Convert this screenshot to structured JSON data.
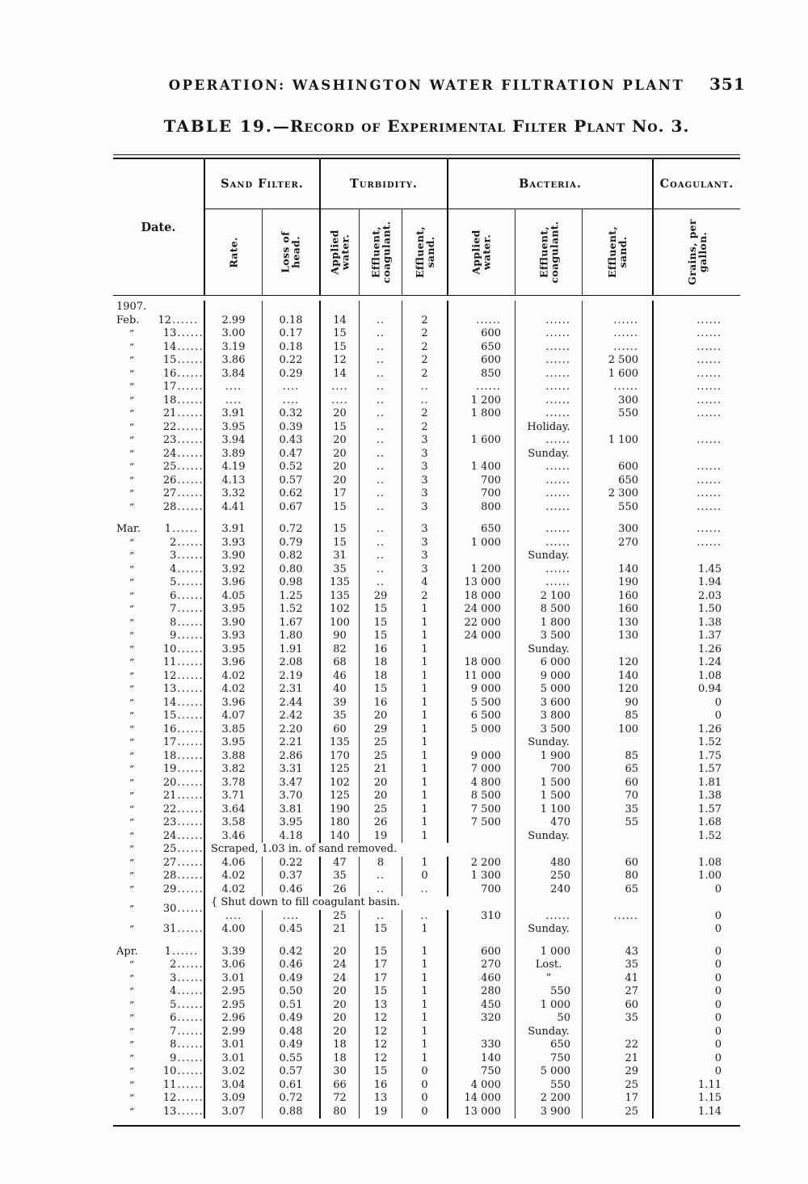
{
  "page": {
    "running_head": "OPERATION: WASHINGTON WATER FILTRATION PLANT",
    "page_number": "351",
    "table_label": "TABLE 19.",
    "table_title": "—Record of Experimental Filter Plant No. 3."
  },
  "table": {
    "date_header": "Date.",
    "leader_dots": "......",
    "ditto": "”",
    "groups": [
      {
        "label": "Sand Filter."
      },
      {
        "label": "Turbidity."
      },
      {
        "label": "Bacteria."
      },
      {
        "label": "Coagulant."
      }
    ],
    "columns": [
      "Rate.",
      "Loss of\nhead.",
      "Applied\nwater.",
      "Effluent,\ncoagulant.",
      "Effluent,\nsand.",
      "Applied\nwater.",
      "Effluent,\ncoagulant.",
      "Effluent,\nsand.",
      "Grains, per\ngallon."
    ],
    "sections": [
      {
        "year": "1907.",
        "rows": [
          {
            "m": "Feb.",
            "d": "12",
            "c": [
              "2.99",
              "0.18",
              "14",
              "..",
              "2",
              "......",
              "......",
              "......",
              "......"
            ]
          },
          {
            "m": "”",
            "d": "13",
            "c": [
              "3.00",
              "0.17",
              "15",
              "..",
              "2",
              "600",
              "......",
              "......",
              "......"
            ]
          },
          {
            "m": "”",
            "d": "14",
            "c": [
              "3.19",
              "0.18",
              "15",
              "..",
              "2",
              "650",
              "......",
              "......",
              "......"
            ]
          },
          {
            "m": "”",
            "d": "15",
            "c": [
              "3.86",
              "0.22",
              "12",
              "..",
              "2",
              "600",
              "......",
              "2 500",
              "......"
            ]
          },
          {
            "m": "”",
            "d": "16",
            "c": [
              "3.84",
              "0.29",
              "14",
              "..",
              "2",
              "850",
              "......",
              "1 600",
              "......"
            ]
          },
          {
            "m": "”",
            "d": "17",
            "c": [
              "....",
              "....",
              "....",
              "..",
              "..",
              "......",
              "......",
              "......",
              "......"
            ]
          },
          {
            "m": "”",
            "d": "18",
            "c": [
              "....",
              "....",
              "....",
              "..",
              "..",
              "1 200",
              "......",
              "300",
              "......"
            ]
          },
          {
            "m": "”",
            "d": "21",
            "c": [
              "3.91",
              "0.32",
              "20",
              "..",
              "2",
              "1 800",
              "......",
              "550",
              "......"
            ]
          },
          {
            "m": "”",
            "d": "22",
            "c": [
              "3.95",
              "0.39",
              "15",
              "..",
              "2",
              "",
              "Holiday.",
              "",
              ""
            ]
          },
          {
            "m": "”",
            "d": "23",
            "c": [
              "3.94",
              "0.43",
              "20",
              "..",
              "3",
              "1 600",
              "......",
              "1 100",
              "......"
            ]
          },
          {
            "m": "”",
            "d": "24",
            "c": [
              "3.89",
              "0.47",
              "20",
              "..",
              "3",
              "",
              "Sunday.",
              "",
              ""
            ]
          },
          {
            "m": "”",
            "d": "25",
            "c": [
              "4.19",
              "0.52",
              "20",
              "..",
              "3",
              "1 400",
              "......",
              "600",
              "......"
            ]
          },
          {
            "m": "”",
            "d": "26",
            "c": [
              "4.13",
              "0.57",
              "20",
              "..",
              "3",
              "700",
              "......",
              "650",
              "......"
            ]
          },
          {
            "m": "”",
            "d": "27",
            "c": [
              "3.32",
              "0.62",
              "17",
              "..",
              "3",
              "700",
              "......",
              "2 300",
              "......"
            ]
          },
          {
            "m": "”",
            "d": "28",
            "c": [
              "4.41",
              "0.67",
              "15",
              "..",
              "3",
              "800",
              "......",
              "550",
              "......"
            ]
          }
        ]
      },
      {
        "rows": [
          {
            "m": "Mar.",
            "d": "1",
            "c": [
              "3.91",
              "0.72",
              "15",
              "..",
              "3",
              "650",
              "......",
              "300",
              "......"
            ]
          },
          {
            "m": "”",
            "d": "2",
            "c": [
              "3.93",
              "0.79",
              "15",
              "..",
              "3",
              "1 000",
              "......",
              "270",
              "......"
            ]
          },
          {
            "m": "”",
            "d": "3",
            "c": [
              "3.90",
              "0.82",
              "31",
              "..",
              "3",
              "",
              "Sunday.",
              "",
              ""
            ]
          },
          {
            "m": "”",
            "d": "4",
            "c": [
              "3.92",
              "0.80",
              "35",
              "..",
              "3",
              "1 200",
              "......",
              "140",
              "1.45"
            ]
          },
          {
            "m": "”",
            "d": "5",
            "c": [
              "3.96",
              "0.98",
              "135",
              "..",
              "4",
              "13 000",
              "......",
              "190",
              "1.94"
            ]
          },
          {
            "m": "”",
            "d": "6",
            "c": [
              "4.05",
              "1.25",
              "135",
              "29",
              "2",
              "18 000",
              "2 100",
              "160",
              "2.03"
            ]
          },
          {
            "m": "”",
            "d": "7",
            "c": [
              "3.95",
              "1.52",
              "102",
              "15",
              "1",
              "24 000",
              "8 500",
              "160",
              "1.50"
            ]
          },
          {
            "m": "”",
            "d": "8",
            "c": [
              "3.90",
              "1.67",
              "100",
              "15",
              "1",
              "22 000",
              "1 800",
              "130",
              "1.38"
            ]
          },
          {
            "m": "”",
            "d": "9",
            "c": [
              "3.93",
              "1.80",
              "90",
              "15",
              "1",
              "24 000",
              "3 500",
              "130",
              "1.37"
            ]
          },
          {
            "m": "”",
            "d": "10",
            "c": [
              "3.95",
              "1.91",
              "82",
              "16",
              "1",
              "",
              "Sunday.",
              "",
              "1.26"
            ]
          },
          {
            "m": "”",
            "d": "11",
            "c": [
              "3.96",
              "2.08",
              "68",
              "18",
              "1",
              "18 000",
              "6 000",
              "120",
              "1.24"
            ]
          },
          {
            "m": "”",
            "d": "12",
            "c": [
              "4.02",
              "2.19",
              "46",
              "18",
              "1",
              "11 000",
              "9 000",
              "140",
              "1.08"
            ]
          },
          {
            "m": "”",
            "d": "13",
            "c": [
              "4.02",
              "2.31",
              "40",
              "15",
              "1",
              "9 000",
              "5 000",
              "120",
              "0.94"
            ]
          },
          {
            "m": "”",
            "d": "14",
            "c": [
              "3.96",
              "2.44",
              "39",
              "16",
              "1",
              "5 500",
              "3 600",
              "90",
              "0"
            ]
          },
          {
            "m": "”",
            "d": "15",
            "c": [
              "4.07",
              "2.42",
              "35",
              "20",
              "1",
              "6 500",
              "3 800",
              "85",
              "0"
            ]
          },
          {
            "m": "”",
            "d": "16",
            "c": [
              "3.85",
              "2.20",
              "60",
              "29",
              "1",
              "5 000",
              "3 500",
              "100",
              "1.26"
            ]
          },
          {
            "m": "”",
            "d": "17",
            "c": [
              "3.95",
              "2.21",
              "135",
              "25",
              "1",
              "",
              "Sunday.",
              "",
              "1.52"
            ]
          },
          {
            "m": "”",
            "d": "18",
            "c": [
              "3.88",
              "2.86",
              "170",
              "25",
              "1",
              "9 000",
              "1 900",
              "85",
              "1.75"
            ]
          },
          {
            "m": "”",
            "d": "19",
            "c": [
              "3.82",
              "3.31",
              "125",
              "21",
              "1",
              "7 000",
              "700",
              "65",
              "1.57"
            ]
          },
          {
            "m": "”",
            "d": "20",
            "c": [
              "3.78",
              "3.47",
              "102",
              "20",
              "1",
              "4 800",
              "1 500",
              "60",
              "1.81"
            ]
          },
          {
            "m": "”",
            "d": "21",
            "c": [
              "3.71",
              "3.70",
              "125",
              "20",
              "1",
              "8 500",
              "1 500",
              "70",
              "1.38"
            ]
          },
          {
            "m": "”",
            "d": "22",
            "c": [
              "3.64",
              "3.81",
              "190",
              "25",
              "1",
              "7 500",
              "1 100",
              "35",
              "1.57"
            ]
          },
          {
            "m": "”",
            "d": "23",
            "c": [
              "3.58",
              "3.95",
              "180",
              "26",
              "1",
              "7 500",
              "470",
              "55",
              "1.68"
            ]
          },
          {
            "m": "”",
            "d": "24",
            "c": [
              "3.46",
              "4.18",
              "140",
              "19",
              "1",
              "",
              "Sunday.",
              "",
              "1.52"
            ]
          },
          {
            "m": "”",
            "d": "25",
            "note": "Scraped, 1.03 in. of sand removed."
          },
          {
            "m": "”",
            "d": "27",
            "c": [
              "4.06",
              "0.22",
              "47",
              "8",
              "1",
              "2 200",
              "480",
              "60",
              "1.08"
            ]
          },
          {
            "m": "”",
            "d": "28",
            "c": [
              "4.02",
              "0.37",
              "35",
              "..",
              "0",
              "1 300",
              "250",
              "80",
              "1.00"
            ]
          },
          {
            "m": "”",
            "d": "29",
            "c": [
              "4.02",
              "0.46",
              "26",
              "..",
              "..",
              "700",
              "240",
              "65",
              "0"
            ]
          },
          {
            "m": "”",
            "d": "30",
            "note": "{ Shut down to fill coagulant basin.",
            "c": [
              "....",
              "....",
              "25",
              "..",
              "..",
              "310",
              "......",
              "......",
              "0"
            ]
          },
          {
            "m": "”",
            "d": "31",
            "c": [
              "4.00",
              "0.45",
              "21",
              "15",
              "1",
              "",
              "Sunday.",
              "",
              "0"
            ]
          }
        ]
      },
      {
        "rows": [
          {
            "m": "Apr.",
            "d": "1",
            "c": [
              "3.39",
              "0.42",
              "20",
              "15",
              "1",
              "600",
              "1 000",
              "43",
              "0"
            ]
          },
          {
            "m": "”",
            "d": "2",
            "c": [
              "3.06",
              "0.46",
              "24",
              "17",
              "1",
              "270",
              "Lost.",
              "35",
              "0"
            ]
          },
          {
            "m": "”",
            "d": "3",
            "c": [
              "3.01",
              "0.49",
              "24",
              "17",
              "1",
              "460",
              "”",
              "41",
              "0"
            ]
          },
          {
            "m": "”",
            "d": "4",
            "c": [
              "2.95",
              "0.50",
              "20",
              "15",
              "1",
              "280",
              "550",
              "27",
              "0"
            ]
          },
          {
            "m": "”",
            "d": "5",
            "c": [
              "2.95",
              "0.51",
              "20",
              "13",
              "1",
              "450",
              "1 000",
              "60",
              "0"
            ]
          },
          {
            "m": "”",
            "d": "6",
            "c": [
              "2.96",
              "0.49",
              "20",
              "12",
              "1",
              "320",
              "50",
              "35",
              "0"
            ]
          },
          {
            "m": "”",
            "d": "7",
            "c": [
              "2.99",
              "0.48",
              "20",
              "12",
              "1",
              "",
              "Sunday.",
              "",
              "0"
            ]
          },
          {
            "m": "”",
            "d": "8",
            "c": [
              "3.01",
              "0.49",
              "18",
              "12",
              "1",
              "330",
              "650",
              "22",
              "0"
            ]
          },
          {
            "m": "”",
            "d": "9",
            "c": [
              "3.01",
              "0.55",
              "18",
              "12",
              "1",
              "140",
              "750",
              "21",
              "0"
            ]
          },
          {
            "m": "”",
            "d": "10",
            "c": [
              "3.02",
              "0.57",
              "30",
              "15",
              "0",
              "750",
              "5 000",
              "29",
              "0"
            ]
          },
          {
            "m": "”",
            "d": "11",
            "c": [
              "3.04",
              "0.61",
              "66",
              "16",
              "0",
              "4 000",
              "550",
              "25",
              "1.11"
            ]
          },
          {
            "m": "”",
            "d": "12",
            "c": [
              "3.09",
              "0.72",
              "72",
              "13",
              "0",
              "14 000",
              "2 200",
              "17",
              "1.15"
            ]
          },
          {
            "m": "”",
            "d": "13",
            "c": [
              "3.07",
              "0.88",
              "80",
              "19",
              "0",
              "13 000",
              "3 900",
              "25",
              "1.14"
            ]
          }
        ]
      }
    ]
  }
}
